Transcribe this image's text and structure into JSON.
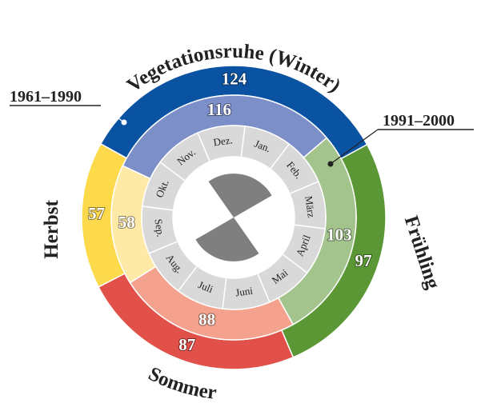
{
  "chart_data": {
    "type": "donut",
    "categories": [
      "Vegetationsruhe (Winter)",
      "Frühling",
      "Sommer",
      "Herbst"
    ],
    "series": [
      {
        "name": "1961–1990",
        "values": [
          124,
          97,
          87,
          57
        ],
        "colors": [
          "#0a52a2",
          "#5b9735",
          "#e2504a",
          "#fdd94c"
        ]
      },
      {
        "name": "1991–2000",
        "values": [
          116,
          103,
          88,
          58
        ],
        "colors": [
          "#7d8fc8",
          "#a3c48c",
          "#f4a28e",
          "#feeaa6"
        ]
      }
    ],
    "months": [
      "Jan.",
      "Feb.",
      "März",
      "April",
      "Mai",
      "Juni",
      "Juli",
      "Aug.",
      "Sep.",
      "Okt.",
      "Nov.",
      "Dez."
    ]
  }
}
